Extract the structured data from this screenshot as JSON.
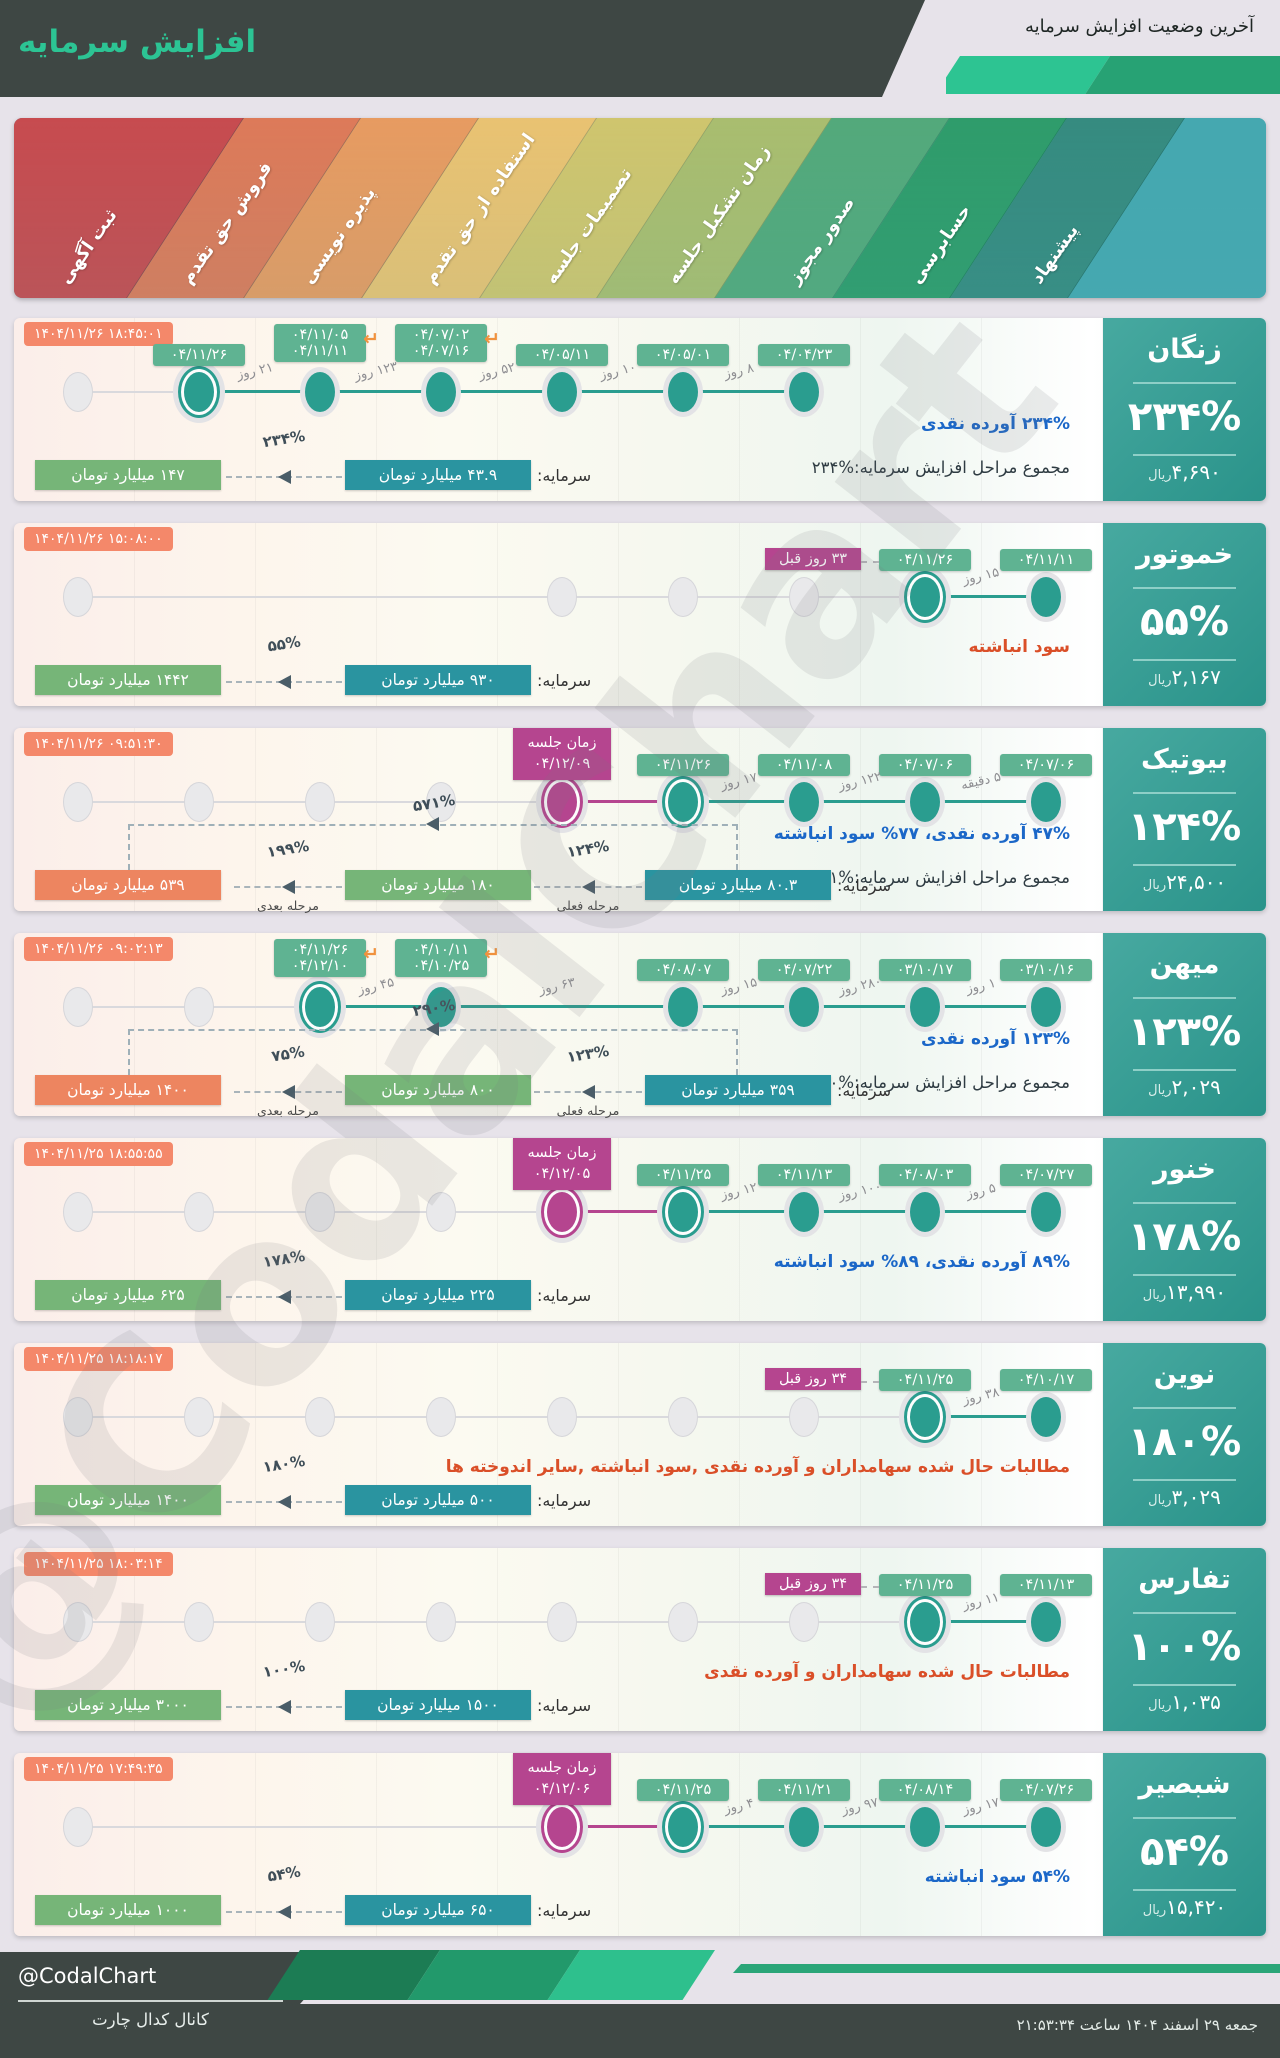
{
  "header": {
    "title": "افزایش سرمایه",
    "subtitle": "آخرین وضعیت افزایش سرمایه",
    "accent_green": "#2cc494",
    "dark": "#3e4744"
  },
  "stages": [
    {
      "label": "ثبت آگهی",
      "color": "#c74b4f"
    },
    {
      "label": "فروش حق تقدم",
      "color": "#dd7a59"
    },
    {
      "label": "پذیره نویسی",
      "color": "#e79b61"
    },
    {
      "label": "استفاده از حق تقدم",
      "color": "#e9c272"
    },
    {
      "label": "تصمیمات جلسه",
      "color": "#cfc56e"
    },
    {
      "label": "زمان تشکیل جلسه",
      "color": "#a9bd6f"
    },
    {
      "label": "صدور مجوز",
      "color": "#53a97b"
    },
    {
      "label": "حسابرسی",
      "color": "#2f9c6b"
    },
    {
      "label": "پیشنهاد",
      "color": "#368b80"
    },
    {
      "label": "",
      "color": "#45a8b0"
    }
  ],
  "labels": {
    "capital": "سرمایه:",
    "stage_current": "مرحله فعلی",
    "stage_next": "مرحله بعدی",
    "meeting": "زمان جلسه",
    "rial": "ریال"
  },
  "watermark": "@CodalChart",
  "rows": [
    {
      "company": "زنگان",
      "percent": "۲۳۴%",
      "price": "۴,۶۹۰",
      "timestamp": "۱۴۰۴/۱۱/۲۶ ۱۸:۴۵:۰۱",
      "note": {
        "text": "۲۳۴% آورده نقدی",
        "color": "blue"
      },
      "total": "مجموع مراحل افزایش سرمایه:%۲۳۴",
      "grays": [
        1
      ],
      "events": [
        {
          "col": 2,
          "dates": [
            "۰۴/۱۱/۲۶"
          ],
          "active": true
        },
        {
          "col": 3,
          "dates": [
            "۰۴/۱۱/۰۵",
            "۰۴/۱۱/۱۱"
          ],
          "bracket": true
        },
        {
          "col": 4,
          "dates": [
            "۰۴/۰۷/۰۲",
            "۰۴/۰۷/۱۶"
          ],
          "bracket": true
        },
        {
          "col": 5,
          "dates": [
            "۰۴/۰۵/۱۱"
          ]
        },
        {
          "col": 6,
          "dates": [
            "۰۴/۰۵/۰۱"
          ]
        },
        {
          "col": 7,
          "dates": [
            "۰۴/۰۴/۲۳"
          ]
        }
      ],
      "gaps": [
        {
          "col": 2,
          "label": "۲۱ روز"
        },
        {
          "col": 3,
          "label": "۱۲۳ روز"
        },
        {
          "col": 4,
          "label": "۵۲ روز"
        },
        {
          "col": 5,
          "label": "۱۰ روز"
        },
        {
          "col": 6,
          "label": "۸ روز"
        }
      ],
      "chain": {
        "from": "۴۳.۹ میلیارد تومان",
        "to": "۱۴۷ میلیارد تومان",
        "pct": "۲۳۴%"
      }
    },
    {
      "company": "خموتور",
      "percent": "۵۵%",
      "price": "۲,۱۶۷",
      "timestamp": "۱۴۰۴/۱۱/۲۶ ۱۵:۰۸:۰۰",
      "note": {
        "text": "سود انباشته",
        "color": "red"
      },
      "grays": [
        1,
        5,
        6,
        7
      ],
      "events": [
        {
          "col": 8,
          "dates": [
            "۰۴/۱۱/۲۶"
          ],
          "active": true
        },
        {
          "col": 9,
          "dates": [
            "۰۴/۱۱/۱۱"
          ]
        }
      ],
      "ago": "۳۳ روز قبل",
      "gaps": [
        {
          "col": 8,
          "label": "۱۵ روز"
        }
      ],
      "chain": {
        "from": "۹۳۰ میلیارد تومان",
        "to": "۱۴۴۲ میلیارد تومان",
        "pct": "۵۵%"
      }
    },
    {
      "company": "بیوتیک",
      "percent": "۱۲۴%",
      "price": "۲۴,۵۰۰",
      "timestamp": "۱۴۰۴/۱۱/۲۶ ۰۹:۵۱:۳۰",
      "note": {
        "text": "۴۷% آورده نقدی، ۷۷% سود انباشته",
        "color": "blue"
      },
      "total": "مجموع مراحل افزایش سرمایه:%۵۷۱",
      "grays": [
        1,
        2,
        3,
        4
      ],
      "meeting": {
        "col": 5,
        "date": "۰۴/۱۲/۰۹"
      },
      "events": [
        {
          "col": 6,
          "dates": [
            "۰۴/۱۱/۲۶"
          ],
          "active": true
        },
        {
          "col": 7,
          "dates": [
            "۰۴/۱۱/۰۸"
          ]
        },
        {
          "col": 8,
          "dates": [
            "۰۴/۰۷/۰۶"
          ]
        },
        {
          "col": 9,
          "dates": [
            "۰۴/۰۷/۰۶"
          ]
        }
      ],
      "gaps": [
        {
          "col": 6,
          "label": "۱۷ روز"
        },
        {
          "col": 7,
          "label": "۱۲۲ روز"
        },
        {
          "col": 8,
          "label": "۵ دقیقه"
        }
      ],
      "chain": {
        "from": "۸۰.۳ میلیارد تومان",
        "pct": "۱۲۴%",
        "to": "۱۸۰ میلیارد تومان",
        "pct2": "۱۹۹%",
        "next": "۵۳۹ میلیارد تومان",
        "top": "۵۷۱%"
      }
    },
    {
      "company": "میهن",
      "percent": "۱۲۳%",
      "price": "۲,۰۲۹",
      "timestamp": "۱۴۰۴/۱۱/۲۶ ۰۹:۰۲:۱۳",
      "note": {
        "text": "۱۲۳% آورده نقدی",
        "color": "blue"
      },
      "total": "مجموع مراحل افزایش سرمایه:%۲۹۰",
      "grays": [
        1,
        2
      ],
      "events": [
        {
          "col": 3,
          "dates": [
            "۰۴/۱۱/۲۶",
            "۰۴/۱۲/۱۰"
          ],
          "bracket": true,
          "active": true
        },
        {
          "col": 4,
          "dates": [
            "۰۴/۱۰/۱۱",
            "۰۴/۱۰/۲۵"
          ],
          "bracket": true
        },
        {
          "col": 6,
          "dates": [
            "۰۴/۰۸/۰۷"
          ]
        },
        {
          "col": 7,
          "dates": [
            "۰۴/۰۷/۲۲"
          ]
        },
        {
          "col": 8,
          "dates": [
            "۰۳/۱۰/۱۷"
          ]
        },
        {
          "col": 9,
          "dates": [
            "۰۳/۱۰/۱۶"
          ]
        }
      ],
      "gaps": [
        {
          "col": 3,
          "label": "۴۵ روز"
        },
        {
          "col": 4,
          "label": "۶۳ روز"
        },
        {
          "col": 6,
          "label": "۱۵ روز"
        },
        {
          "col": 7,
          "label": "۲۸۰ روز"
        },
        {
          "col": 8,
          "label": "۱ روز"
        }
      ],
      "chain": {
        "from": "۳۵۹ میلیارد تومان",
        "pct": "۱۲۳%",
        "to": "۸۰۰ میلیارد تومان",
        "pct2": "۷۵%",
        "next": "۱۴۰۰ میلیارد تومان",
        "top": "۲۹۰%"
      }
    },
    {
      "company": "خنور",
      "percent": "۱۷۸%",
      "price": "۱۳,۹۹۰",
      "timestamp": "۱۴۰۴/۱۱/۲۵ ۱۸:۵۵:۵۵",
      "note": {
        "text": "۸۹% آورده نقدی، ۸۹% سود انباشته",
        "color": "blue"
      },
      "grays": [
        1,
        2,
        3,
        4
      ],
      "meeting": {
        "col": 5,
        "date": "۰۴/۱۲/۰۵"
      },
      "events": [
        {
          "col": 6,
          "dates": [
            "۰۴/۱۱/۲۵"
          ],
          "active": true
        },
        {
          "col": 7,
          "dates": [
            "۰۴/۱۱/۱۳"
          ]
        },
        {
          "col": 8,
          "dates": [
            "۰۴/۰۸/۰۳"
          ]
        },
        {
          "col": 9,
          "dates": [
            "۰۴/۰۷/۲۷"
          ]
        }
      ],
      "gaps": [
        {
          "col": 6,
          "label": "۱۲ روز"
        },
        {
          "col": 7,
          "label": "۱۰۰ روز"
        },
        {
          "col": 8,
          "label": "۵ روز"
        }
      ],
      "chain": {
        "from": "۲۲۵ میلیارد تومان",
        "to": "۶۲۵ میلیارد تومان",
        "pct": "۱۷۸%"
      }
    },
    {
      "company": "نوین",
      "percent": "۱۸۰%",
      "price": "۳,۰۲۹",
      "timestamp": "۱۴۰۴/۱۱/۲۵ ۱۸:۱۸:۱۷",
      "note": {
        "text": "مطالبات حال شده سهامداران و آورده نقدی ,سود انباشته ,سایر اندوخته ها",
        "color": "red"
      },
      "grays": [
        1,
        2,
        3,
        4,
        5,
        6,
        7
      ],
      "events": [
        {
          "col": 8,
          "dates": [
            "۰۴/۱۱/۲۵"
          ],
          "active": true
        },
        {
          "col": 9,
          "dates": [
            "۰۴/۱۰/۱۷"
          ]
        }
      ],
      "ago": "۳۴ روز قبل",
      "gaps": [
        {
          "col": 8,
          "label": "۳۸ روز"
        }
      ],
      "chain": {
        "from": "۵۰۰ میلیارد تومان",
        "to": "۱۴۰۰ میلیارد تومان",
        "pct": "۱۸۰%"
      }
    },
    {
      "company": "تفارس",
      "percent": "۱۰۰%",
      "price": "۱,۰۳۵",
      "timestamp": "۱۴۰۴/۱۱/۲۵ ۱۸:۰۳:۱۴",
      "note": {
        "text": "مطالبات حال شده سهامداران و آورده نقدی",
        "color": "red"
      },
      "grays": [
        1,
        2,
        3,
        4,
        5,
        6,
        7
      ],
      "events": [
        {
          "col": 8,
          "dates": [
            "۰۴/۱۱/۲۵"
          ],
          "active": true
        },
        {
          "col": 9,
          "dates": [
            "۰۴/۱۱/۱۳"
          ]
        }
      ],
      "ago": "۳۴ روز قبل",
      "gaps": [
        {
          "col": 8,
          "label": "۱۱ روز"
        }
      ],
      "chain": {
        "from": "۱۵۰۰ میلیارد تومان",
        "to": "۳۰۰۰ میلیارد تومان",
        "pct": "۱۰۰%"
      }
    },
    {
      "company": "شبصیر",
      "percent": "۵۴%",
      "price": "۱۵,۴۲۰",
      "timestamp": "۱۴۰۴/۱۱/۲۵ ۱۷:۴۹:۳۵",
      "note": {
        "text": "۵۴% سود انباشته",
        "color": "blue"
      },
      "grays": [
        1
      ],
      "meeting": {
        "col": 5,
        "date": "۰۴/۱۲/۰۶"
      },
      "events": [
        {
          "col": 6,
          "dates": [
            "۰۴/۱۱/۲۵"
          ],
          "active": true
        },
        {
          "col": 7,
          "dates": [
            "۰۴/۱۱/۲۱"
          ]
        },
        {
          "col": 8,
          "dates": [
            "۰۴/۰۸/۱۴"
          ]
        },
        {
          "col": 9,
          "dates": [
            "۰۴/۰۷/۲۶"
          ]
        }
      ],
      "gaps": [
        {
          "col": 6,
          "label": "۴ روز"
        },
        {
          "col": 7,
          "label": "۹۷ روز"
        },
        {
          "col": 8,
          "label": "۱۷ روز"
        }
      ],
      "chain": {
        "from": "۶۵۰ میلیارد تومان",
        "to": "۱۰۰۰ میلیارد تومان",
        "pct": "۵۴%"
      }
    }
  ],
  "footer": {
    "handle": "@CodalChart",
    "channel": "کانال کدال چارت",
    "date": "جمعه ۲۹ اسفند ۱۴۰۴ ساعت ۲۱:۵۳:۳۴"
  }
}
